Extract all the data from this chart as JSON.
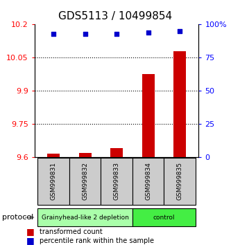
{
  "title": "GDS5113 / 10499854",
  "samples": [
    "GSM999831",
    "GSM999832",
    "GSM999833",
    "GSM999834",
    "GSM999835"
  ],
  "bar_values": [
    9.615,
    9.617,
    9.64,
    9.975,
    10.08
  ],
  "percentile_values": [
    93,
    93,
    93,
    94,
    95
  ],
  "ylim_left": [
    9.6,
    10.2
  ],
  "ylim_right": [
    0,
    100
  ],
  "yticks_left": [
    9.6,
    9.75,
    9.9,
    10.05,
    10.2
  ],
  "yticks_right": [
    0,
    25,
    50,
    75,
    100
  ],
  "ytick_labels_left": [
    "9.6",
    "9.75",
    "9.9",
    "10.05",
    "10.2"
  ],
  "ytick_labels_right": [
    "0",
    "25",
    "50",
    "75",
    "100%"
  ],
  "bar_color": "#cc0000",
  "dot_color": "#0000cc",
  "groups": [
    {
      "label": "Grainyhead-like 2 depletion",
      "samples": [
        0,
        1,
        2
      ],
      "color": "#aaffaa"
    },
    {
      "label": "control",
      "samples": [
        3,
        4
      ],
      "color": "#44ee44"
    }
  ],
  "protocol_label": "protocol",
  "legend_items": [
    {
      "color": "#cc0000",
      "label": "transformed count"
    },
    {
      "color": "#0000cc",
      "label": "percentile rank within the sample"
    }
  ],
  "title_fontsize": 11,
  "tick_fontsize": 8
}
